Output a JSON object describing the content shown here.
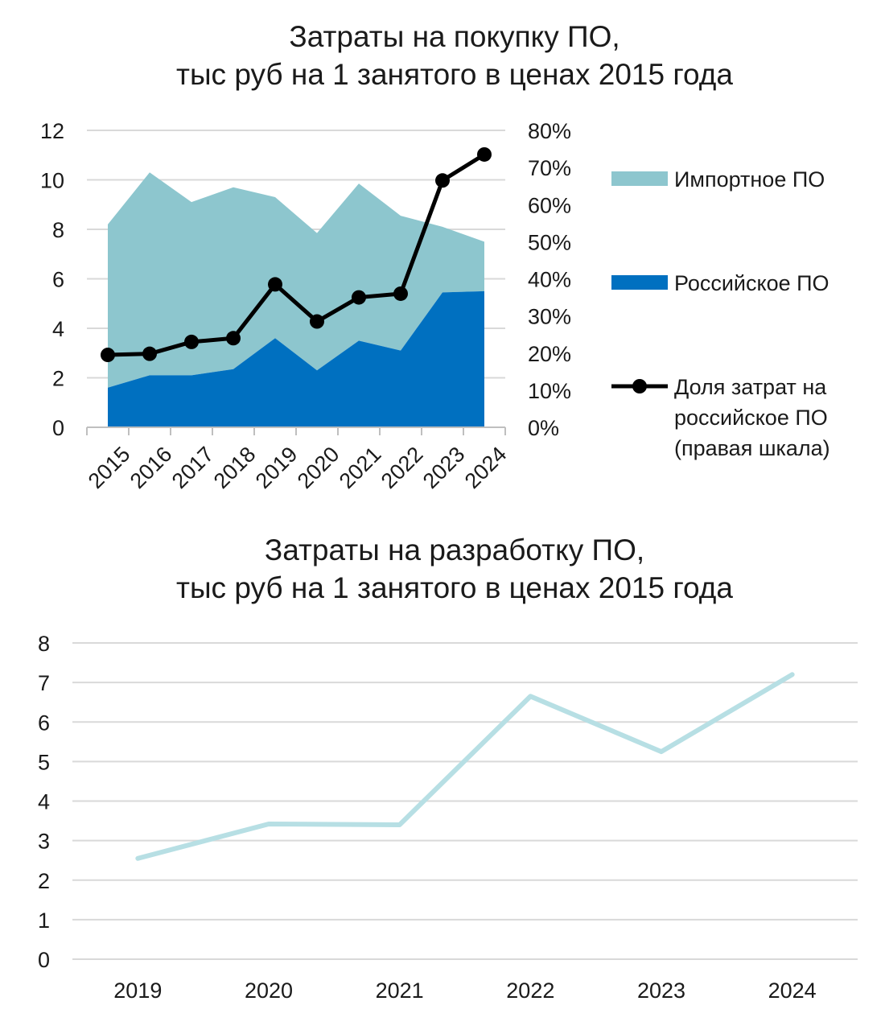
{
  "chart_data": [
    {
      "type": "area",
      "title": "Затраты на покупку ПО,",
      "subtitle": "тыс руб на 1 занятого в ценах 2015 года",
      "categories": [
        "2015",
        "2016",
        "2017",
        "2018",
        "2019",
        "2020",
        "2021",
        "2022",
        "2023",
        "2024"
      ],
      "ylim": [
        0,
        12
      ],
      "yticks": [
        "0",
        "2",
        "4",
        "6",
        "8",
        "10",
        "12"
      ],
      "y2lim": [
        0,
        0.8
      ],
      "y2ticks": [
        "0%",
        "10%",
        "20%",
        "30%",
        "40%",
        "50%",
        "60%",
        "70%",
        "80%"
      ],
      "series": [
        {
          "name": "Российское ПО",
          "kind": "area",
          "color": "#0070C0",
          "values": [
            1.6,
            2.1,
            2.1,
            2.35,
            3.6,
            2.3,
            3.5,
            3.1,
            5.45,
            5.5
          ]
        },
        {
          "name": "Импортное ПО",
          "kind": "area",
          "color": "#8DC6CE",
          "values": [
            6.6,
            8.2,
            7.0,
            7.35,
            5.7,
            5.55,
            6.35,
            5.45,
            2.65,
            2.0
          ]
        },
        {
          "name": "Доля затрат на российское ПО (правая шкала)",
          "kind": "line",
          "axis": "right",
          "color": "#000000",
          "values": [
            0.195,
            0.198,
            0.23,
            0.24,
            0.385,
            0.285,
            0.35,
            0.36,
            0.665,
            0.735
          ]
        }
      ],
      "legend": [
        {
          "label": "Импортное ПО",
          "lines": [
            "Импортное ПО"
          ]
        },
        {
          "label": "Российское ПО",
          "lines": [
            "Российское ПО"
          ]
        },
        {
          "label": "Доля затрат на российское ПО (правая шкала)",
          "lines": [
            "Доля затрат на",
            "российское ПО",
            "(правая шкала)"
          ]
        }
      ]
    },
    {
      "type": "line",
      "title": "Затраты на разработку ПО,",
      "subtitle": "тыс руб на 1 занятого в ценах 2015 года",
      "categories": [
        "2019",
        "2020",
        "2021",
        "2022",
        "2023",
        "2024"
      ],
      "ylim": [
        0,
        8
      ],
      "yticks": [
        "0",
        "1",
        "2",
        "3",
        "4",
        "5",
        "6",
        "7",
        "8"
      ],
      "series": [
        {
          "name": "Затраты на разработку ПО",
          "color": "#B7DFE4",
          "values": [
            2.55,
            3.42,
            3.4,
            6.65,
            5.25,
            7.2
          ]
        }
      ]
    }
  ]
}
